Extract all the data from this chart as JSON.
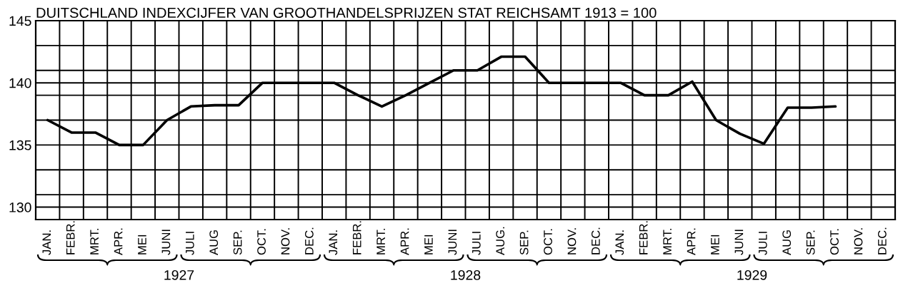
{
  "chart_data": {
    "type": "line",
    "title": "DUITSCHLAND INDEXCIJFER VAN GROOTHANDELSPRIJZEN STAT REICHSAMT 1913 = 100",
    "categories": [
      "JAN.",
      "FEBR.",
      "MRT.",
      "APR.",
      "MEI",
      "JUNI",
      "JULI",
      "AUG",
      "SEP.",
      "OCT.",
      "NOV.",
      "DEC.",
      "JAN.",
      "FEBR.",
      "MRT.",
      "APR.",
      "MEI",
      "JUNI",
      "JULI",
      "AUG.",
      "SEP.",
      "OCT.",
      "NOV.",
      "DEC.",
      "JAN.",
      "FEBR.",
      "MRT.",
      "APR.",
      "MEI",
      "JUNI",
      "JULI",
      "AUG",
      "SEP.",
      "OCT.",
      "NOV.",
      "DEC."
    ],
    "values": [
      137.0,
      136.0,
      136.0,
      135.0,
      135.0,
      137.0,
      138.1,
      138.2,
      138.2,
      140.0,
      140.0,
      140.0,
      140.0,
      139.0,
      138.1,
      139.0,
      140.0,
      141.0,
      141.0,
      142.1,
      142.1,
      140.0,
      140.0,
      140.0,
      140.0,
      139.0,
      139.0,
      140.1,
      137.0,
      135.9,
      135.1,
      138.0,
      138.0,
      138.1,
      null,
      null
    ],
    "color": "#000000",
    "ylim": [
      129,
      145
    ],
    "yticks": [
      {
        "value": 129,
        "label": null
      },
      130,
      {
        "value": 131,
        "label": null
      },
      {
        "value": 133,
        "label": null
      },
      135,
      {
        "value": 137,
        "label": null
      },
      {
        "value": 139,
        "label": null
      },
      140,
      {
        "value": 141,
        "label": null
      },
      {
        "value": 143,
        "label": null
      },
      145
    ],
    "grid": true,
    "annotations": [
      "1927",
      "1928",
      "1929"
    ]
  }
}
